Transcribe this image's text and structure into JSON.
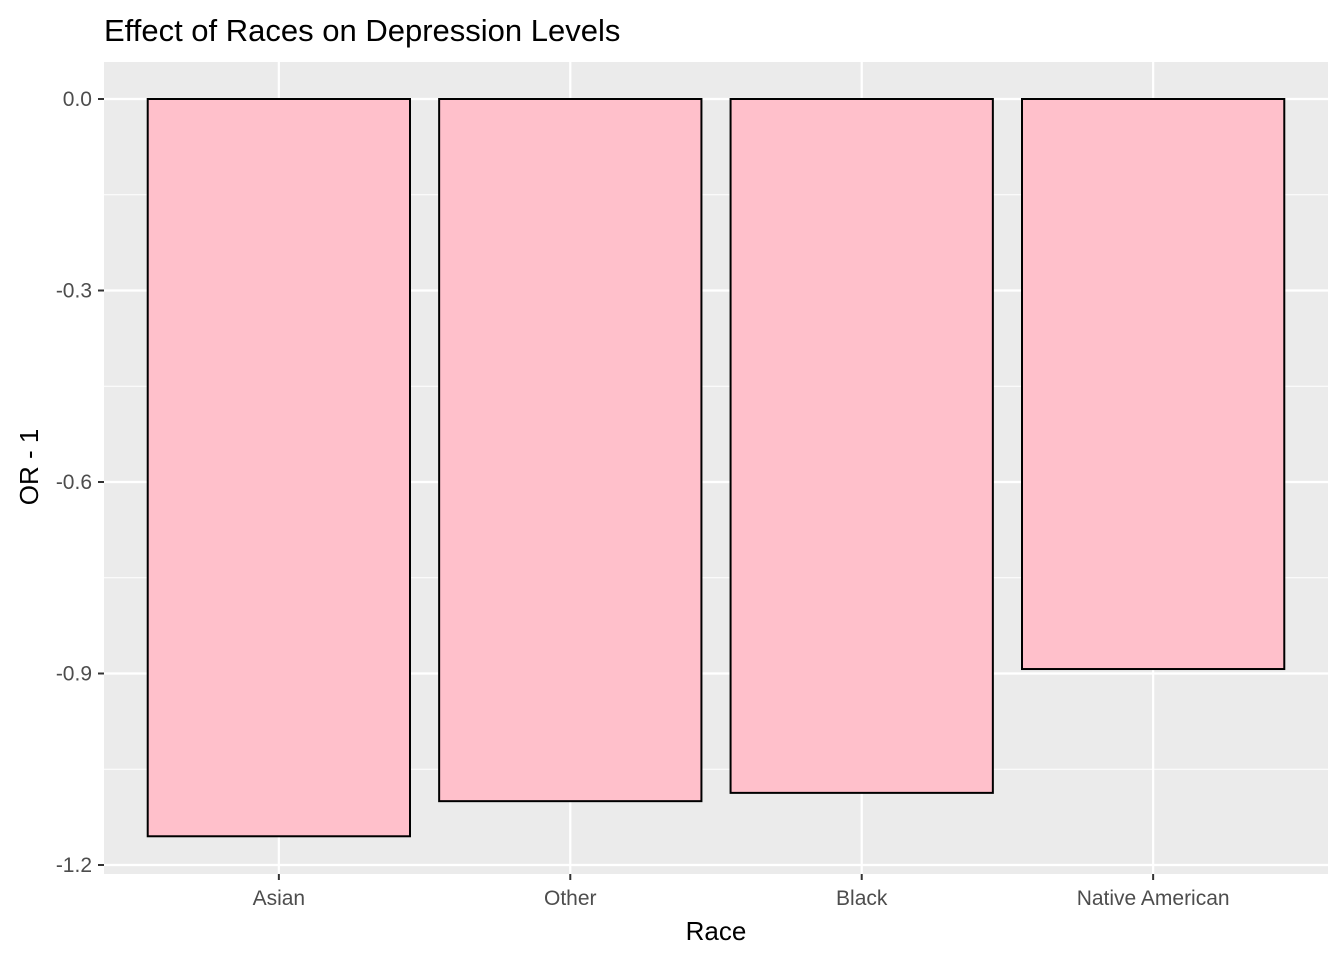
{
  "chart_data": {
    "type": "bar",
    "title": "Effect of Races on Depression Levels",
    "xlabel": "Race",
    "ylabel": "OR - 1",
    "categories": [
      "Asian",
      "Other",
      "Black",
      "Native American"
    ],
    "values": [
      -1.155,
      -1.1,
      -1.087,
      -0.893
    ],
    "ylim": [
      -1.2,
      0.0
    ],
    "yticks": [
      0.0,
      -0.3,
      -0.6,
      -0.9,
      -1.2
    ],
    "ytick_labels": [
      "0.0",
      "-0.3",
      "-0.6",
      "-0.9",
      "-1.2"
    ],
    "grid": true,
    "legend": "none",
    "colors": {
      "bar_fill": "#ffc0cb",
      "bar_stroke": "#000000",
      "panel_bg": "#ebebeb",
      "grid_major": "#ffffff",
      "grid_minor": "#f5f5f5",
      "tick_label": "#4d4d4d"
    }
  }
}
